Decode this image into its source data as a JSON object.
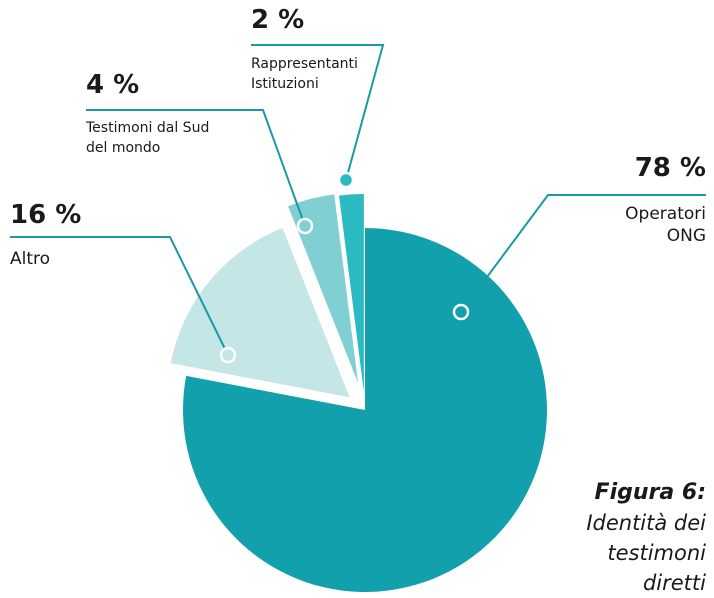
{
  "chart_data": {
    "type": "pie",
    "title": "Figura 6:",
    "subtitle": "Identità dei testimoni diretti",
    "categories": [
      "Operatori ONG",
      "Altro",
      "Testimoni dal Sud del mondo",
      "Rappresentanti Istituzioni"
    ],
    "values": [
      78,
      16,
      4,
      2
    ],
    "value_labels": [
      "78 %",
      "16 %",
      "4 %",
      "2 %"
    ],
    "colors": [
      "#12a0ac",
      "#c4e6e6",
      "#80cfd3",
      "#2bb9c2"
    ]
  }
}
